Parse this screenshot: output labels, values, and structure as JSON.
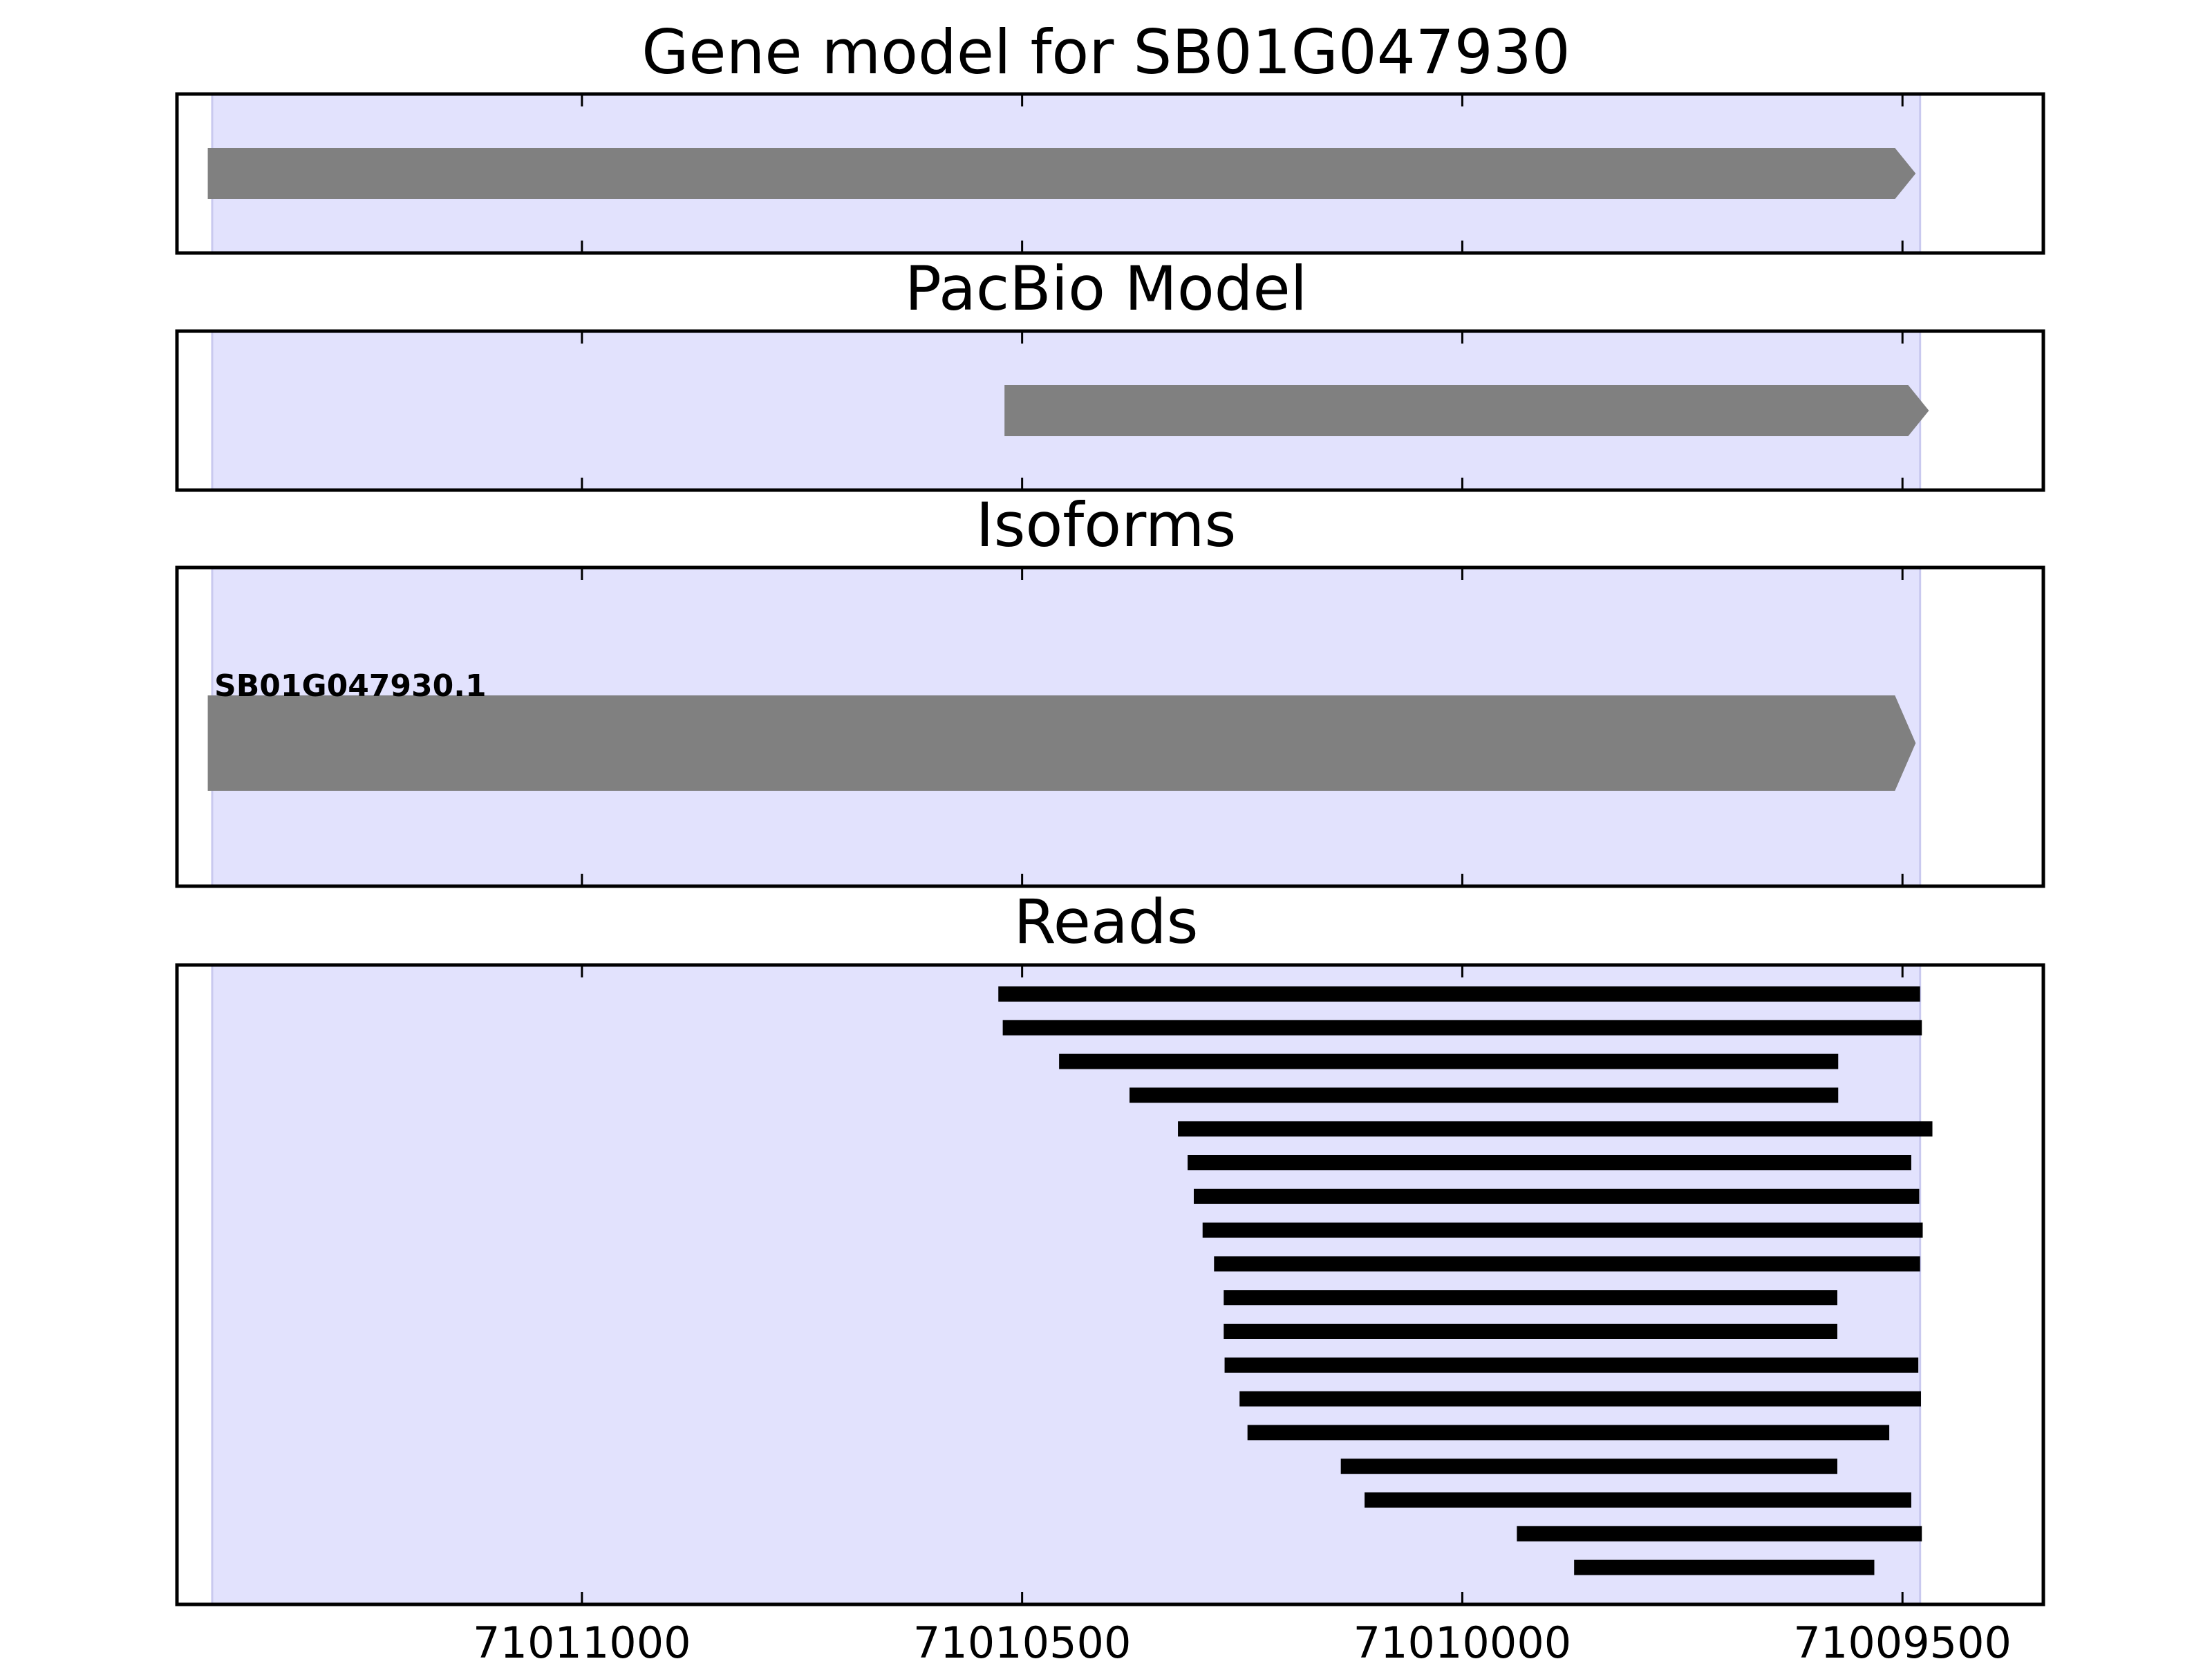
{
  "colors": {
    "highlight": "#e2e2fd",
    "highlight_edge": "#c9c9ef",
    "feature": "#808080",
    "read": "#000000",
    "axes": "#000000"
  },
  "chart_data": {
    "type": "gene-track",
    "x_axis": {
      "direction": "descending",
      "xlim": [
        71011460,
        71009340
      ],
      "ticks": [
        71011000,
        71010500,
        71010000,
        71009500
      ],
      "tick_labels": [
        "71011000",
        "71010500",
        "71010000",
        "71009500"
      ]
    },
    "highlight_region": [
      71011420,
      71009480
    ],
    "panels": [
      {
        "id": "gene-model",
        "title": "Gene model for SB01G047930",
        "features": [
          {
            "start": 71011425,
            "end": 71009485,
            "strand": "-",
            "thickness": "thin"
          }
        ]
      },
      {
        "id": "pacbio-model",
        "title": "PacBio Model",
        "features": [
          {
            "start": 71010520,
            "end": 71009470,
            "strand": "-",
            "thickness": "thin"
          }
        ]
      },
      {
        "id": "isoforms",
        "title": "Isoforms",
        "features": [
          {
            "label": "SB01G047930.1",
            "start": 71011425,
            "end": 71009485,
            "strand": "-",
            "thickness": "thick"
          }
        ]
      },
      {
        "id": "reads",
        "title": "Reads",
        "reads": [
          {
            "start": 71010527,
            "end": 71009480
          },
          {
            "start": 71010522,
            "end": 71009478
          },
          {
            "start": 71010458,
            "end": 71009573
          },
          {
            "start": 71010378,
            "end": 71009573
          },
          {
            "start": 71010323,
            "end": 71009466
          },
          {
            "start": 71010312,
            "end": 71009490
          },
          {
            "start": 71010305,
            "end": 71009481
          },
          {
            "start": 71010295,
            "end": 71009477
          },
          {
            "start": 71010282,
            "end": 71009480
          },
          {
            "start": 71010271,
            "end": 71009574
          },
          {
            "start": 71010271,
            "end": 71009574
          },
          {
            "start": 71010270,
            "end": 71009482
          },
          {
            "start": 71010253,
            "end": 71009479
          },
          {
            "start": 71010244,
            "end": 71009515
          },
          {
            "start": 71010138,
            "end": 71009574
          },
          {
            "start": 71010111,
            "end": 71009490
          },
          {
            "start": 71009938,
            "end": 71009478
          },
          {
            "start": 71009873,
            "end": 71009532
          }
        ]
      }
    ]
  }
}
